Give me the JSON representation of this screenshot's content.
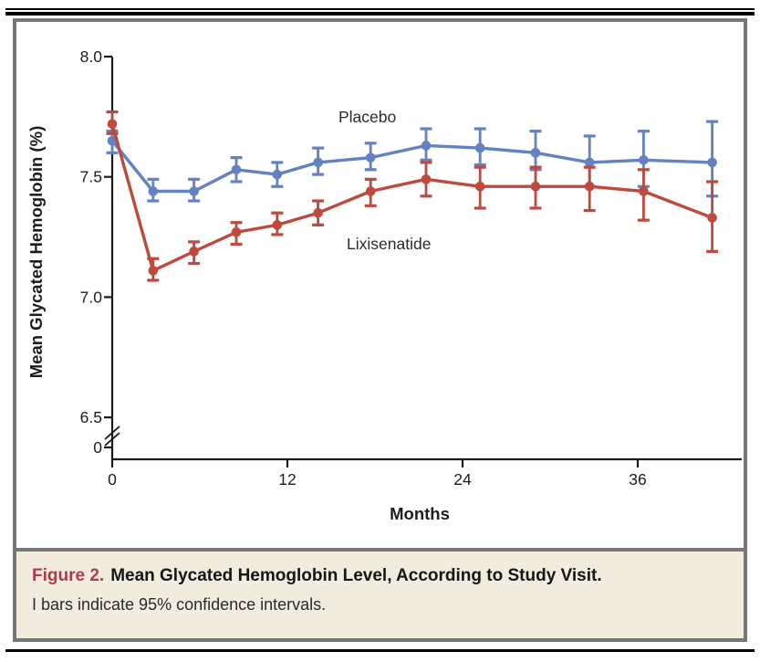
{
  "figure": {
    "caption_label": "Figure 2.",
    "caption_title": "Mean Glycated Hemoglobin Level, According to Study Visit.",
    "caption_note": "I bars indicate 95% confidence intervals."
  },
  "chart_data": {
    "type": "line",
    "title": "",
    "xlabel": "Months",
    "ylabel": "Mean Glycated Hemoglobin (%)",
    "x_ticks": [
      0,
      12,
      24,
      36
    ],
    "xtick_labels": [
      "0",
      "12",
      "24",
      "36"
    ],
    "ytick_values": [
      8.0,
      7.5,
      7.0,
      6.5
    ],
    "ytick_labels": [
      "8.0",
      "7.5",
      "7.0",
      "6.5",
      "0"
    ],
    "y_axis_break_between": [
      0,
      6.5
    ],
    "ylim_display": [
      6.5,
      8.0
    ],
    "xlim": [
      0,
      43
    ],
    "grid": false,
    "legend": "inline-annotations",
    "error_bars": "95% confidence intervals",
    "months": [
      0,
      2.8,
      5.6,
      8.5,
      11.3,
      14.1,
      17.7,
      21.5,
      25.2,
      29,
      32.7,
      36.4,
      41.1
    ],
    "series": [
      {
        "name": "Placebo",
        "color": "#6282c1",
        "values": [
          7.65,
          7.44,
          7.44,
          7.53,
          7.51,
          7.56,
          7.58,
          7.63,
          7.62,
          7.6,
          7.56,
          7.57,
          7.56
        ],
        "ci_low": [
          7.6,
          7.4,
          7.4,
          7.48,
          7.46,
          7.51,
          7.53,
          7.57,
          7.55,
          7.53,
          7.46,
          7.46,
          7.42
        ],
        "ci_high": [
          7.69,
          7.49,
          7.49,
          7.58,
          7.56,
          7.62,
          7.64,
          7.7,
          7.7,
          7.69,
          7.67,
          7.69,
          7.73
        ]
      },
      {
        "name": "Lixisenatide",
        "color": "#bd4a3c",
        "values": [
          7.72,
          7.11,
          7.19,
          7.27,
          7.3,
          7.35,
          7.44,
          7.49,
          7.46,
          7.46,
          7.46,
          7.44,
          7.33
        ],
        "ci_low": [
          7.68,
          7.07,
          7.14,
          7.22,
          7.26,
          7.3,
          7.38,
          7.42,
          7.37,
          7.37,
          7.36,
          7.32,
          7.19
        ],
        "ci_high": [
          7.77,
          7.16,
          7.23,
          7.31,
          7.35,
          7.4,
          7.49,
          7.56,
          7.54,
          7.54,
          7.54,
          7.53,
          7.48
        ]
      }
    ]
  },
  "colors": {
    "placebo": "#6282c1",
    "lixisenatide": "#bd4a3c",
    "frame_border": "#76777a",
    "caption_background": "#f2ecdf",
    "figure_label": "#b23a4b",
    "axis": "#1a1a1a"
  }
}
